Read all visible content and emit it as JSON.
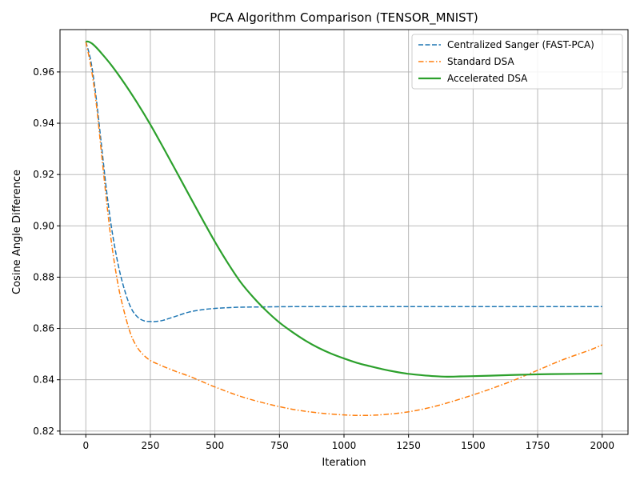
{
  "chart_data": {
    "type": "line",
    "title": "PCA Algorithm Comparison (TENSOR_MNIST)",
    "xlabel": "Iteration",
    "ylabel": "Cosine Angle Difference",
    "xlim": [
      -100,
      2100
    ],
    "ylim": [
      0.8187,
      0.9765
    ],
    "xticks": [
      0,
      250,
      500,
      750,
      1000,
      1250,
      1500,
      1750,
      2000
    ],
    "xtick_labels": [
      "0",
      "250",
      "500",
      "750",
      "1000",
      "1250",
      "1500",
      "1750",
      "2000"
    ],
    "yticks": [
      0.82,
      0.84,
      0.86,
      0.88,
      0.9,
      0.92,
      0.94,
      0.96
    ],
    "ytick_labels": [
      "0.82",
      "0.84",
      "0.86",
      "0.88",
      "0.90",
      "0.92",
      "0.94",
      "0.96"
    ],
    "grid": true,
    "legend_position": "top-right",
    "series": [
      {
        "name": "Centralized Sanger (FAST-PCA)",
        "color": "#1f77b4",
        "style": "dashed",
        "x": [
          0,
          20,
          40,
          60,
          80,
          100,
          125,
          150,
          175,
          200,
          225,
          250,
          270,
          300,
          350,
          400,
          450,
          500,
          550,
          600,
          700,
          800,
          1000,
          1250,
          1500,
          1750,
          2000
        ],
        "y": [
          0.9718,
          0.964,
          0.95,
          0.932,
          0.914,
          0.899,
          0.885,
          0.875,
          0.868,
          0.8645,
          0.863,
          0.8627,
          0.8627,
          0.8632,
          0.8648,
          0.8664,
          0.8673,
          0.8678,
          0.8681,
          0.8683,
          0.8684,
          0.8685,
          0.8685,
          0.8685,
          0.8685,
          0.8685,
          0.8685
        ]
      },
      {
        "name": "Standard DSA",
        "color": "#ff7f0e",
        "style": "dashdot",
        "x": [
          0,
          20,
          40,
          60,
          80,
          100,
          125,
          150,
          175,
          200,
          225,
          250,
          275,
          300,
          350,
          400,
          450,
          500,
          600,
          700,
          800,
          900,
          1000,
          1075,
          1150,
          1250,
          1350,
          1450,
          1550,
          1650,
          1750,
          1850,
          1950,
          2000
        ],
        "y": [
          0.9718,
          0.962,
          0.948,
          0.929,
          0.91,
          0.893,
          0.877,
          0.866,
          0.8575,
          0.8525,
          0.8495,
          0.8475,
          0.8463,
          0.8452,
          0.8432,
          0.8414,
          0.8393,
          0.8372,
          0.8335,
          0.8307,
          0.8285,
          0.8271,
          0.8263,
          0.8261,
          0.8264,
          0.8275,
          0.8296,
          0.8325,
          0.8358,
          0.8395,
          0.8437,
          0.8479,
          0.8515,
          0.8536
        ]
      },
      {
        "name": "Accelerated DSA",
        "color": "#2ca02c",
        "style": "solid",
        "x": [
          0,
          10,
          25,
          50,
          100,
          150,
          200,
          250,
          300,
          350,
          400,
          450,
          500,
          550,
          600,
          650,
          700,
          750,
          800,
          850,
          900,
          950,
          1000,
          1050,
          1100,
          1150,
          1200,
          1250,
          1300,
          1350,
          1400,
          1450,
          1500,
          1600,
          1700,
          1800,
          1900,
          2000
        ],
        "y": [
          0.9718,
          0.9718,
          0.971,
          0.9685,
          0.9625,
          0.9555,
          0.9478,
          0.9395,
          0.9305,
          0.9213,
          0.912,
          0.9028,
          0.8938,
          0.8855,
          0.878,
          0.872,
          0.8668,
          0.8623,
          0.8586,
          0.8553,
          0.8525,
          0.8502,
          0.8483,
          0.8466,
          0.8453,
          0.8441,
          0.8431,
          0.8423,
          0.8418,
          0.8414,
          0.8412,
          0.8413,
          0.8414,
          0.8417,
          0.842,
          0.8422,
          0.8423,
          0.8424
        ]
      }
    ]
  }
}
